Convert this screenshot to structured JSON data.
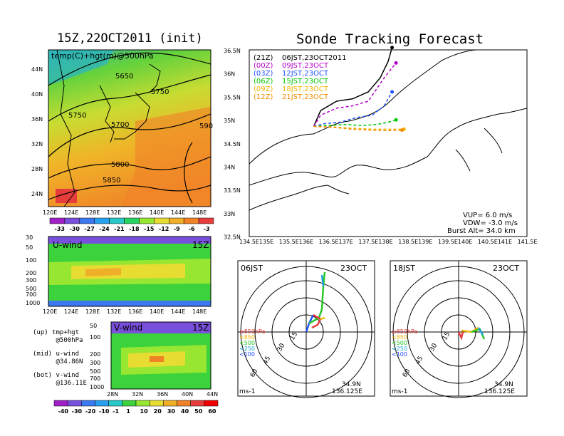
{
  "titles": {
    "left": "15Z,22OCT2011 (init)",
    "right": "Sonde Tracking Forecast"
  },
  "upper_map": {
    "label": "temp(C)+hgt(m)@500hPa",
    "contours": [
      "5650",
      "5750",
      "5750",
      "5700",
      "590",
      "5800",
      "5850"
    ],
    "lat_ticks": [
      "44N",
      "40N",
      "36N",
      "32N",
      "28N",
      "24N"
    ],
    "lon_ticks": [
      "120E",
      "124E",
      "128E",
      "132E",
      "136E",
      "140E",
      "144E",
      "148E"
    ],
    "colorbar": [
      "-33",
      "-30",
      "-27",
      "-24",
      "-21",
      "-18",
      "-15",
      "-12",
      "-9",
      "-6",
      "-3"
    ],
    "colorbar_colors": [
      "#a020c8",
      "#7850dc",
      "#3c78f0",
      "#28a0f0",
      "#28c8c8",
      "#28d264",
      "#96e632",
      "#e6dc32",
      "#f0af28",
      "#f08228",
      "#e63c3c"
    ]
  },
  "u_panel": {
    "label": "U-wind",
    "time": "15Z",
    "p_ticks": [
      "30",
      "50",
      "100",
      "200",
      "300",
      "500",
      "700",
      "1000"
    ],
    "lon_ticks": [
      "120E",
      "124E",
      "128E",
      "132E",
      "136E",
      "140E",
      "144E",
      "148E"
    ]
  },
  "v_panel": {
    "label": "V-wind",
    "time": "15Z",
    "p_ticks": [
      "50",
      "100",
      "200",
      "300",
      "500",
      "700",
      "1000"
    ],
    "lat_ticks": [
      "28N",
      "32N",
      "36N",
      "40N",
      "44N"
    ],
    "colorbar": [
      "-40",
      "-30",
      "-20",
      "-10",
      "-1",
      "1",
      "10",
      "20",
      "30",
      "40",
      "50",
      "60"
    ],
    "colorbar_colors": [
      "#a020c8",
      "#7850dc",
      "#3c78f0",
      "#28a0f0",
      "#28c8c8",
      "#3cd23c",
      "#96e632",
      "#e6dc32",
      "#f0af28",
      "#f08228",
      "#e63c3c",
      "#f00000"
    ]
  },
  "legend_notes": [
    {
      "a": "(up) tmp+hgt",
      "b": "@500hPa"
    },
    {
      "a": "(mid) u-wind",
      "b": "@34.86N"
    },
    {
      "a": "(bot) v-wind",
      "b": "@136.11E"
    }
  ],
  "track_map": {
    "lat_ticks": [
      "36.5N",
      "36N",
      "35.5N",
      "35N",
      "34.5N",
      "34N",
      "33.5N",
      "33N",
      "32.5N"
    ],
    "lon_ticks": [
      "134.5E",
      "135E",
      "135.5E",
      "136E",
      "136.5E",
      "137E",
      "137.5E",
      "138E",
      "138.5E",
      "139E",
      "139.5E",
      "140E",
      "140.5E",
      "141E",
      "141.5E"
    ],
    "legend": [
      {
        "code": "(21Z)",
        "text": "06JST,23OCT2011",
        "color": "#000000"
      },
      {
        "code": "(00Z)",
        "text": "09JST,23OCT",
        "color": "#b400c8"
      },
      {
        "code": "(03Z)",
        "text": "12JST,23OCT",
        "color": "#1e50ff"
      },
      {
        "code": "(06Z)",
        "text": "15JST,23OCT",
        "color": "#00c800"
      },
      {
        "code": "(09Z)",
        "text": "18JST,23OCT",
        "color": "#f0b400"
      },
      {
        "code": "(12Z)",
        "text": "21JST,23OCT",
        "color": "#f08c00"
      }
    ],
    "params": [
      "VUP= 6.0 m/s",
      "VDW= -3.0 m/s",
      "Burst Alt= 34.0 km"
    ]
  },
  "polar_left": {
    "time": "06JST",
    "date": "23OCT",
    "rings": [
      "15",
      "30",
      "45",
      "60"
    ],
    "levels": [
      "≥850hPa",
      "<850",
      "<500",
      "<250",
      "<100"
    ],
    "level_colors": [
      "#e63c3c",
      "#f0b400",
      "#28c828",
      "#1ea0dc",
      "#1e50ff"
    ],
    "unit": "ms-1",
    "lat": "34.9N",
    "lon": "136.125E"
  },
  "polar_right": {
    "time": "18JST",
    "date": "23OCT",
    "rings": [
      "15",
      "30",
      "45",
      "60"
    ],
    "levels": [
      "≥850hPa",
      "<850",
      "<500",
      "<250",
      "<100"
    ],
    "level_colors": [
      "#e63c3c",
      "#f0b400",
      "#28c828",
      "#1ea0dc",
      "#1e50ff"
    ],
    "unit": "ms-1",
    "lat": "34.9N",
    "lon": "136.125E"
  },
  "chart_data": [
    {
      "type": "heatmap",
      "title": "15Z,22OCT2011 (init)",
      "ylabel": "temp(C)+hgt(m)@500hPa",
      "xlim": [
        120,
        150
      ],
      "ylim": [
        22,
        46
      ],
      "colorbar_ticks": [
        -33,
        -30,
        -27,
        -24,
        -21,
        -18,
        -15,
        -12,
        -9,
        -6,
        -3
      ],
      "contour_labels": [
        5650,
        5750,
        5750,
        5700,
        5800,
        5850,
        590
      ]
    },
    {
      "type": "heatmap",
      "title": "U-wind",
      "x_ticks": [
        120,
        124,
        128,
        132,
        136,
        140,
        144,
        148
      ],
      "y_ticks_hPa": [
        30,
        50,
        100,
        200,
        300,
        500,
        700,
        1000
      ]
    },
    {
      "type": "heatmap",
      "title": "V-wind",
      "x_ticks": [
        28,
        32,
        36,
        40,
        44
      ],
      "y_ticks_hPa": [
        50,
        100,
        200,
        300,
        500,
        700,
        1000
      ],
      "colorbar_ticks": [
        -40,
        -30,
        -20,
        -10,
        -1,
        1,
        10,
        20,
        30,
        40,
        50,
        60
      ]
    },
    {
      "type": "line",
      "title": "Sonde Tracking Forecast",
      "xlim": [
        134.5,
        141.5
      ],
      "ylim": [
        32.5,
        36.5
      ],
      "series": [
        {
          "name": "06JST,23OCT2011",
          "x": [
            136.125,
            136.3,
            136.7,
            137.1,
            137.5,
            137.8,
            138.0,
            138.1
          ],
          "y": [
            34.86,
            35.2,
            35.4,
            35.45,
            35.6,
            35.9,
            36.25,
            36.55
          ]
        },
        {
          "name": "09JST,23OCT",
          "x": [
            136.125,
            136.3,
            136.7,
            137.1,
            137.5,
            137.9,
            138.2
          ],
          "y": [
            34.86,
            35.1,
            35.25,
            35.3,
            35.4,
            35.9,
            36.22
          ]
        },
        {
          "name": "12JST,23OCT",
          "x": [
            136.125,
            136.4,
            136.8,
            137.2,
            137.6,
            137.9,
            138.1
          ],
          "y": [
            34.86,
            34.92,
            34.95,
            35.05,
            35.1,
            35.3,
            35.6
          ]
        },
        {
          "name": "15JST,23OCT",
          "x": [
            136.125,
            136.5,
            136.9,
            137.3,
            137.7,
            138.0,
            138.2
          ],
          "y": [
            34.86,
            34.88,
            34.9,
            34.88,
            34.9,
            34.95,
            35.0
          ]
        },
        {
          "name": "18JST,23OCT",
          "x": [
            136.125,
            136.6,
            137.1,
            137.6,
            138.0,
            138.4
          ],
          "y": [
            34.86,
            34.85,
            34.82,
            34.8,
            34.8,
            34.8
          ]
        },
        {
          "name": "21JST,23OCT",
          "x": [
            136.125,
            136.6,
            137.1,
            137.6,
            138.0,
            138.35
          ],
          "y": [
            34.86,
            34.84,
            34.8,
            34.78,
            34.77,
            34.78
          ]
        }
      ]
    }
  ]
}
